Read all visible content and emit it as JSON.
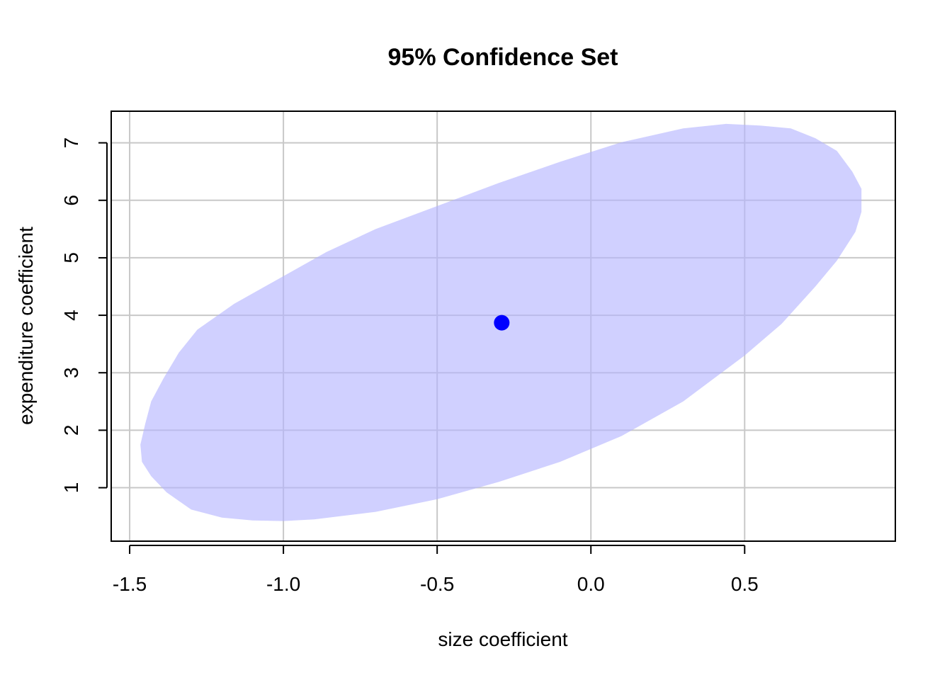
{
  "chart_data": {
    "type": "scatter",
    "title": "95% Confidence Set",
    "xlabel": "size coefficient",
    "ylabel": "expenditure coefficient",
    "xlim": [
      -1.56,
      0.99
    ],
    "ylim": [
      0.07,
      7.55
    ],
    "x_ticks": [
      -1.5,
      -1.0,
      -0.5,
      0.0,
      0.5
    ],
    "x_tick_labels": [
      "-1.5",
      "-1.0",
      "-0.5",
      "0.0",
      "0.5"
    ],
    "y_ticks": [
      1,
      2,
      3,
      4,
      5,
      6,
      7
    ],
    "y_tick_labels": [
      "1",
      "2",
      "3",
      "4",
      "5",
      "6",
      "7"
    ],
    "grid": true,
    "region": {
      "shape": "ellipse",
      "center": [
        -0.29,
        3.87
      ],
      "fill_color": "#b3b3ff",
      "boundary": [
        [
          -1.465,
          1.75
        ],
        [
          -1.45,
          2.1
        ],
        [
          -1.43,
          2.5
        ],
        [
          -1.39,
          2.9
        ],
        [
          -1.34,
          3.35
        ],
        [
          -1.28,
          3.75
        ],
        [
          -1.16,
          4.2
        ],
        [
          -1.0,
          4.68
        ],
        [
          -0.86,
          5.1
        ],
        [
          -0.7,
          5.5
        ],
        [
          -0.5,
          5.9
        ],
        [
          -0.3,
          6.3
        ],
        [
          -0.1,
          6.67
        ],
        [
          0.1,
          7.01
        ],
        [
          0.3,
          7.25
        ],
        [
          0.44,
          7.33
        ],
        [
          0.55,
          7.3
        ],
        [
          0.65,
          7.25
        ],
        [
          0.73,
          7.08
        ],
        [
          0.8,
          6.86
        ],
        [
          0.85,
          6.5
        ],
        [
          0.88,
          6.2
        ],
        [
          0.88,
          5.8
        ],
        [
          0.86,
          5.45
        ],
        [
          0.8,
          4.95
        ],
        [
          0.73,
          4.5
        ],
        [
          0.62,
          3.85
        ],
        [
          0.5,
          3.3
        ],
        [
          0.3,
          2.5
        ],
        [
          0.1,
          1.9
        ],
        [
          -0.1,
          1.45
        ],
        [
          -0.3,
          1.1
        ],
        [
          -0.5,
          0.8
        ],
        [
          -0.7,
          0.58
        ],
        [
          -0.9,
          0.45
        ],
        [
          -1.0,
          0.42
        ],
        [
          -1.1,
          0.43
        ],
        [
          -1.2,
          0.48
        ],
        [
          -1.3,
          0.62
        ],
        [
          -1.38,
          0.92
        ],
        [
          -1.43,
          1.2
        ],
        [
          -1.46,
          1.45
        ]
      ]
    },
    "points": [
      {
        "x": -0.29,
        "y": 3.87,
        "color": "#0000ff"
      }
    ]
  }
}
